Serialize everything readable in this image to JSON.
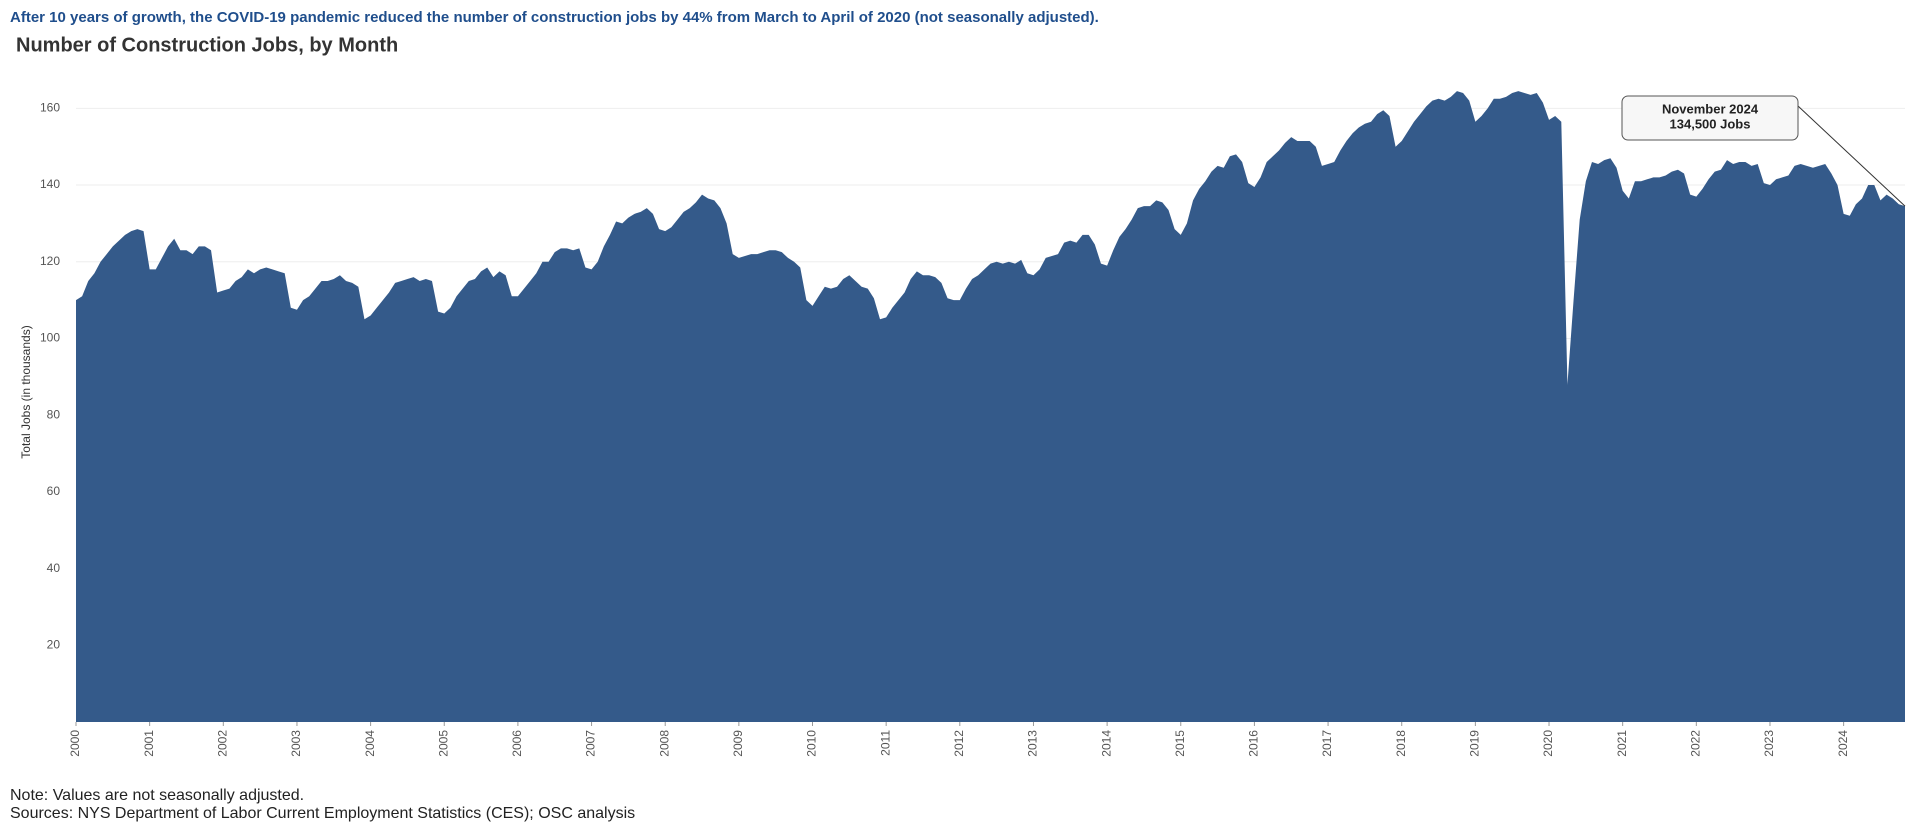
{
  "chart_data": {
    "type": "area",
    "headline": "After 10 years of growth, the COVID-19 pandemic reduced the number of construction jobs by 44% from March to April of 2020 (not seasonally adjusted).",
    "title": "Number of Construction Jobs, by Month",
    "y_label": "Total Jobs (in thousands)",
    "note": "Note: Values are not seasonally adjusted.",
    "source": "Sources: NYS Department of Labor Current Employment Statistics (CES); OSC analysis",
    "annotation": {
      "lines": [
        "November 2024",
        "134,500 Jobs"
      ],
      "index": 298
    },
    "color": "#345a8a",
    "grid": true,
    "ylim": [
      0,
      170
    ],
    "yticks": [
      20,
      40,
      60,
      80,
      100,
      120,
      140,
      160
    ],
    "categories": [
      "2000",
      null,
      null,
      null,
      null,
      null,
      null,
      null,
      null,
      null,
      null,
      null,
      "2001",
      null,
      null,
      null,
      null,
      null,
      null,
      null,
      null,
      null,
      null,
      null,
      "2002",
      null,
      null,
      null,
      null,
      null,
      null,
      null,
      null,
      null,
      null,
      null,
      "2003",
      null,
      null,
      null,
      null,
      null,
      null,
      null,
      null,
      null,
      null,
      null,
      "2004",
      null,
      null,
      null,
      null,
      null,
      null,
      null,
      null,
      null,
      null,
      null,
      "2005",
      null,
      null,
      null,
      null,
      null,
      null,
      null,
      null,
      null,
      null,
      null,
      "2006",
      null,
      null,
      null,
      null,
      null,
      null,
      null,
      null,
      null,
      null,
      null,
      "2007",
      null,
      null,
      null,
      null,
      null,
      null,
      null,
      null,
      null,
      null,
      null,
      "2008",
      null,
      null,
      null,
      null,
      null,
      null,
      null,
      null,
      null,
      null,
      null,
      "2009",
      null,
      null,
      null,
      null,
      null,
      null,
      null,
      null,
      null,
      null,
      null,
      "2010",
      null,
      null,
      null,
      null,
      null,
      null,
      null,
      null,
      null,
      null,
      null,
      "2011",
      null,
      null,
      null,
      null,
      null,
      null,
      null,
      null,
      null,
      null,
      null,
      "2012",
      null,
      null,
      null,
      null,
      null,
      null,
      null,
      null,
      null,
      null,
      null,
      "2013",
      null,
      null,
      null,
      null,
      null,
      null,
      null,
      null,
      null,
      null,
      null,
      "2014",
      null,
      null,
      null,
      null,
      null,
      null,
      null,
      null,
      null,
      null,
      null,
      "2015",
      null,
      null,
      null,
      null,
      null,
      null,
      null,
      null,
      null,
      null,
      null,
      "2016",
      null,
      null,
      null,
      null,
      null,
      null,
      null,
      null,
      null,
      null,
      null,
      "2017",
      null,
      null,
      null,
      null,
      null,
      null,
      null,
      null,
      null,
      null,
      null,
      "2018",
      null,
      null,
      null,
      null,
      null,
      null,
      null,
      null,
      null,
      null,
      null,
      "2019",
      null,
      null,
      null,
      null,
      null,
      null,
      null,
      null,
      null,
      null,
      null,
      "2020",
      null,
      null,
      null,
      null,
      null,
      null,
      null,
      null,
      null,
      null,
      null,
      "2021",
      null,
      null,
      null,
      null,
      null,
      null,
      null,
      null,
      null,
      null,
      null,
      "2022",
      null,
      null,
      null,
      null,
      null,
      null,
      null,
      null,
      null,
      null,
      null,
      "2023",
      null,
      null,
      null,
      null,
      null,
      null,
      null,
      null,
      null,
      null,
      null,
      "2024",
      null,
      null,
      null,
      null,
      null,
      null,
      null,
      null,
      null,
      null
    ],
    "values": [
      110,
      111,
      115,
      117,
      120,
      122,
      124,
      125.5,
      127,
      128,
      128.5,
      128,
      118,
      118,
      121,
      124,
      126,
      123,
      123,
      122,
      124,
      124,
      123,
      112,
      112.5,
      113,
      115,
      116,
      118,
      117,
      118,
      118.5,
      118,
      117.5,
      117,
      108,
      107.5,
      110,
      111,
      113,
      115,
      115,
      115.5,
      116.5,
      115,
      114.5,
      113.5,
      105,
      106,
      108,
      110,
      112,
      114.5,
      115,
      115.5,
      116,
      115,
      115.5,
      115,
      107,
      106.5,
      108,
      111,
      113,
      115,
      115.5,
      117.5,
      118.5,
      116,
      117.5,
      116.5,
      111,
      111,
      113,
      115,
      117,
      120,
      120,
      122.5,
      123.5,
      123.5,
      123,
      123.5,
      118.5,
      118,
      120,
      124,
      127,
      130.5,
      130,
      131.5,
      132.5,
      133,
      134,
      132.5,
      128.5,
      128,
      129,
      131,
      133,
      134,
      135.5,
      137.5,
      136.5,
      136,
      134,
      130,
      122,
      121,
      121.5,
      122,
      122,
      122.5,
      123,
      123,
      122.5,
      121,
      120,
      118.5,
      110,
      108.5,
      111,
      113.5,
      113,
      113.5,
      115.5,
      116.5,
      115,
      113.5,
      113,
      110.5,
      105,
      105.5,
      108,
      110,
      112,
      115.5,
      117.5,
      116.5,
      116.5,
      116,
      114.5,
      110.5,
      110,
      110,
      113,
      115.5,
      116.5,
      118,
      119.5,
      120,
      119.5,
      120,
      119.5,
      120.5,
      117,
      116.5,
      118,
      121,
      121.5,
      122,
      125,
      125.5,
      125,
      127,
      127,
      124.5,
      119.5,
      119,
      123,
      126.5,
      128.5,
      131,
      134,
      134.5,
      134.5,
      136,
      135.5,
      133.5,
      128.5,
      127,
      130,
      136,
      139,
      141,
      143.5,
      145,
      144.5,
      147.5,
      148,
      146,
      140.5,
      139.5,
      142,
      146,
      147.5,
      149,
      151,
      152.5,
      151.5,
      151.5,
      151.5,
      150,
      145,
      145.5,
      146,
      149,
      151.5,
      153.5,
      155,
      156,
      156.5,
      158.5,
      159.5,
      158,
      150,
      151.5,
      154,
      156.5,
      158.5,
      160.5,
      162,
      162.5,
      162,
      163,
      164.5,
      164,
      162,
      156.5,
      158,
      160,
      162.5,
      162.5,
      163,
      164,
      164.5,
      164,
      163.5,
      164,
      161.5,
      157,
      158,
      156.5,
      88,
      110,
      131,
      141,
      146,
      145.5,
      146.5,
      147,
      144.5,
      138.5,
      136.5,
      141,
      141,
      141.5,
      142,
      142,
      142.5,
      143.5,
      144,
      143,
      137.5,
      137,
      139,
      141.5,
      143.5,
      144,
      146.5,
      145.5,
      146,
      146,
      145,
      145.5,
      140.5,
      140,
      141.5,
      142,
      142.5,
      145,
      145.5,
      145,
      144.5,
      145,
      145.5,
      143,
      140,
      132.5,
      132,
      135,
      136.5,
      140,
      140,
      136,
      137.5,
      136.5,
      135,
      134.5
    ]
  }
}
